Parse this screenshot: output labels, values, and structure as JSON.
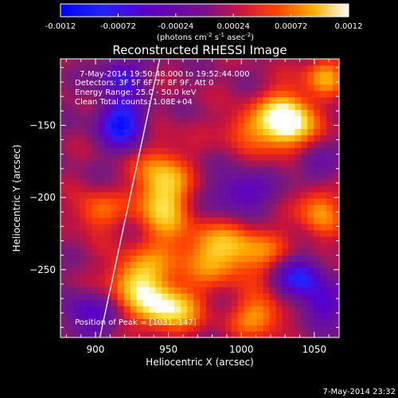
{
  "chart_data": {
    "type": "heatmap",
    "title": "Reconstructed RHESSI Image",
    "colorbar": {
      "ticks": [
        "-0.0012",
        "-0.00072",
        "-0.00024",
        "0.00024",
        "0.00072",
        "0.0012"
      ],
      "tick_values": [
        -0.0012,
        -0.00072,
        -0.00024,
        0.00024,
        0.00072,
        0.0012
      ],
      "range": [
        -0.0012,
        0.0012
      ],
      "label": "(photons cm",
      "label_sup1": "-2",
      "label_mid": " s",
      "label_sup2": "-1",
      "label_end": " asec",
      "label_sup3": "-2",
      "label_close": ")"
    },
    "xlabel": "Heliocentric X (arcsec)",
    "ylabel": "Heliocentric Y (arcsec)",
    "xlim": [
      876,
      1067
    ],
    "ylim": [
      -297,
      -104
    ],
    "xticks": [
      900,
      950,
      1000,
      1050
    ],
    "yticks": [
      -150,
      -200,
      -250
    ],
    "annotations": [
      "7-May-2014 19:50:48.000 to 19:52:44.000",
      "Detectors: 3F 5F 6F 7F 8F 9F, Att 0",
      "Energy Range: 25.0 - 50.0 keV",
      "Clean    Total counts: 1.08E+04"
    ],
    "peak_label": "Position of Peak = [1031,-147]",
    "limb_line": [
      [
        903,
        -297
      ],
      [
        944,
        -104
      ]
    ],
    "hotspots": [
      {
        "x": 1031,
        "y": -147,
        "sx": 13,
        "sy": 14,
        "v": 1.1
      },
      {
        "x": 945,
        "y": -196,
        "sx": 13,
        "sy": 22,
        "v": 0.8
      },
      {
        "x": 990,
        "y": -238,
        "sx": 27,
        "sy": 14,
        "v": 0.7
      },
      {
        "x": 948,
        "y": -276,
        "sx": 16,
        "sy": 12,
        "v": 0.85
      },
      {
        "x": 927,
        "y": -256,
        "sx": 14,
        "sy": 12,
        "v": 0.65
      },
      {
        "x": 1012,
        "y": -282,
        "sx": 14,
        "sy": 10,
        "v": 0.55
      },
      {
        "x": 1054,
        "y": -208,
        "sx": 10,
        "sy": 14,
        "v": 0.55
      },
      {
        "x": 1057,
        "y": -115,
        "sx": 10,
        "sy": 10,
        "v": 0.55
      },
      {
        "x": 1001,
        "y": -152,
        "sx": 12,
        "sy": 10,
        "v": 0.4
      },
      {
        "x": 900,
        "y": -210,
        "sx": 12,
        "sy": 10,
        "v": 0.45
      },
      {
        "x": 918,
        "y": -148,
        "sx": 11,
        "sy": 12,
        "v": -1.0
      },
      {
        "x": 917,
        "y": -116,
        "sx": 10,
        "sy": 8,
        "v": -0.7
      },
      {
        "x": 1000,
        "y": -197,
        "sx": 14,
        "sy": 10,
        "v": -0.55
      },
      {
        "x": 1040,
        "y": -255,
        "sx": 12,
        "sy": 10,
        "v": -0.8
      },
      {
        "x": 1055,
        "y": -275,
        "sx": 10,
        "sy": 10,
        "v": -0.55
      },
      {
        "x": 895,
        "y": -282,
        "sx": 12,
        "sy": 12,
        "v": -0.5
      },
      {
        "x": 1050,
        "y": -178,
        "sx": 10,
        "sy": 10,
        "v": -0.4
      }
    ]
  },
  "footer": {
    "timestamp": "7-May-2014 23:32"
  }
}
